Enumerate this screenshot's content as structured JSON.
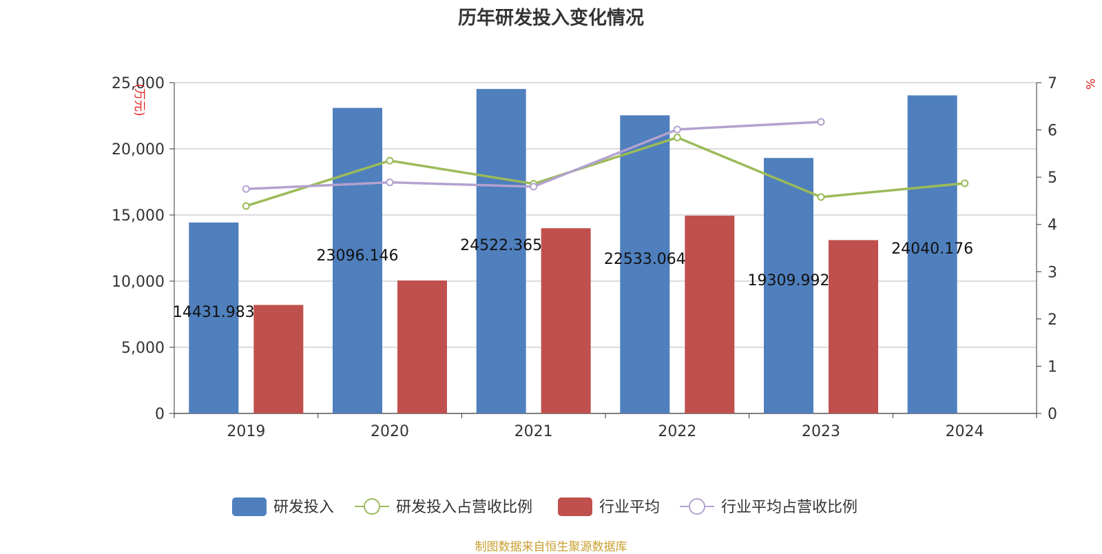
{
  "chart_data": {
    "type": "bar+line",
    "title": "历年研发投入变化情况",
    "categories": [
      "2019",
      "2020",
      "2021",
      "2022",
      "2023",
      "2024"
    ],
    "y_left": {
      "label": "万元",
      "ylim": [
        0,
        25000
      ],
      "ticks": [
        0,
        5000,
        10000,
        15000,
        20000,
        25000
      ],
      "tick_labels": [
        "0",
        "5,000",
        "10,000",
        "15,000",
        "20,000",
        "25,000"
      ]
    },
    "y_right": {
      "label": "%",
      "ylim": [
        0,
        7
      ],
      "ticks": [
        0,
        1,
        2,
        3,
        4,
        5,
        6,
        7
      ],
      "tick_labels": [
        "0",
        "1",
        "2",
        "3",
        "4",
        "5",
        "6",
        "7"
      ]
    },
    "grid": true,
    "legend_position": "bottom",
    "series": [
      {
        "name": "研发投入",
        "kind": "bar",
        "axis": "left",
        "color": "#4f7fbd",
        "values": [
          14431.983,
          23096.146,
          24522.365,
          22533.064,
          19309.992,
          24040.176
        ],
        "labels": [
          "14431.983",
          "23096.146",
          "24522.365",
          "22533.064",
          "19309.992",
          "24040.176"
        ]
      },
      {
        "name": "研发投入占营收比例",
        "kind": "line",
        "axis": "right",
        "color": "#9bbb59",
        "values": [
          4.39,
          5.35,
          4.86,
          5.84,
          4.58,
          4.87
        ]
      },
      {
        "name": "行业平均",
        "kind": "bar",
        "axis": "left",
        "color": "#c0504d",
        "values": [
          8200,
          10050,
          14000,
          14950,
          13100,
          null
        ]
      },
      {
        "name": "行业平均占营收比例",
        "kind": "line",
        "axis": "right",
        "color": "#b3a2cf",
        "values": [
          4.75,
          4.89,
          4.8,
          6.01,
          6.17,
          null
        ]
      }
    ]
  },
  "source": "制图数据来自恒生聚源数据库"
}
